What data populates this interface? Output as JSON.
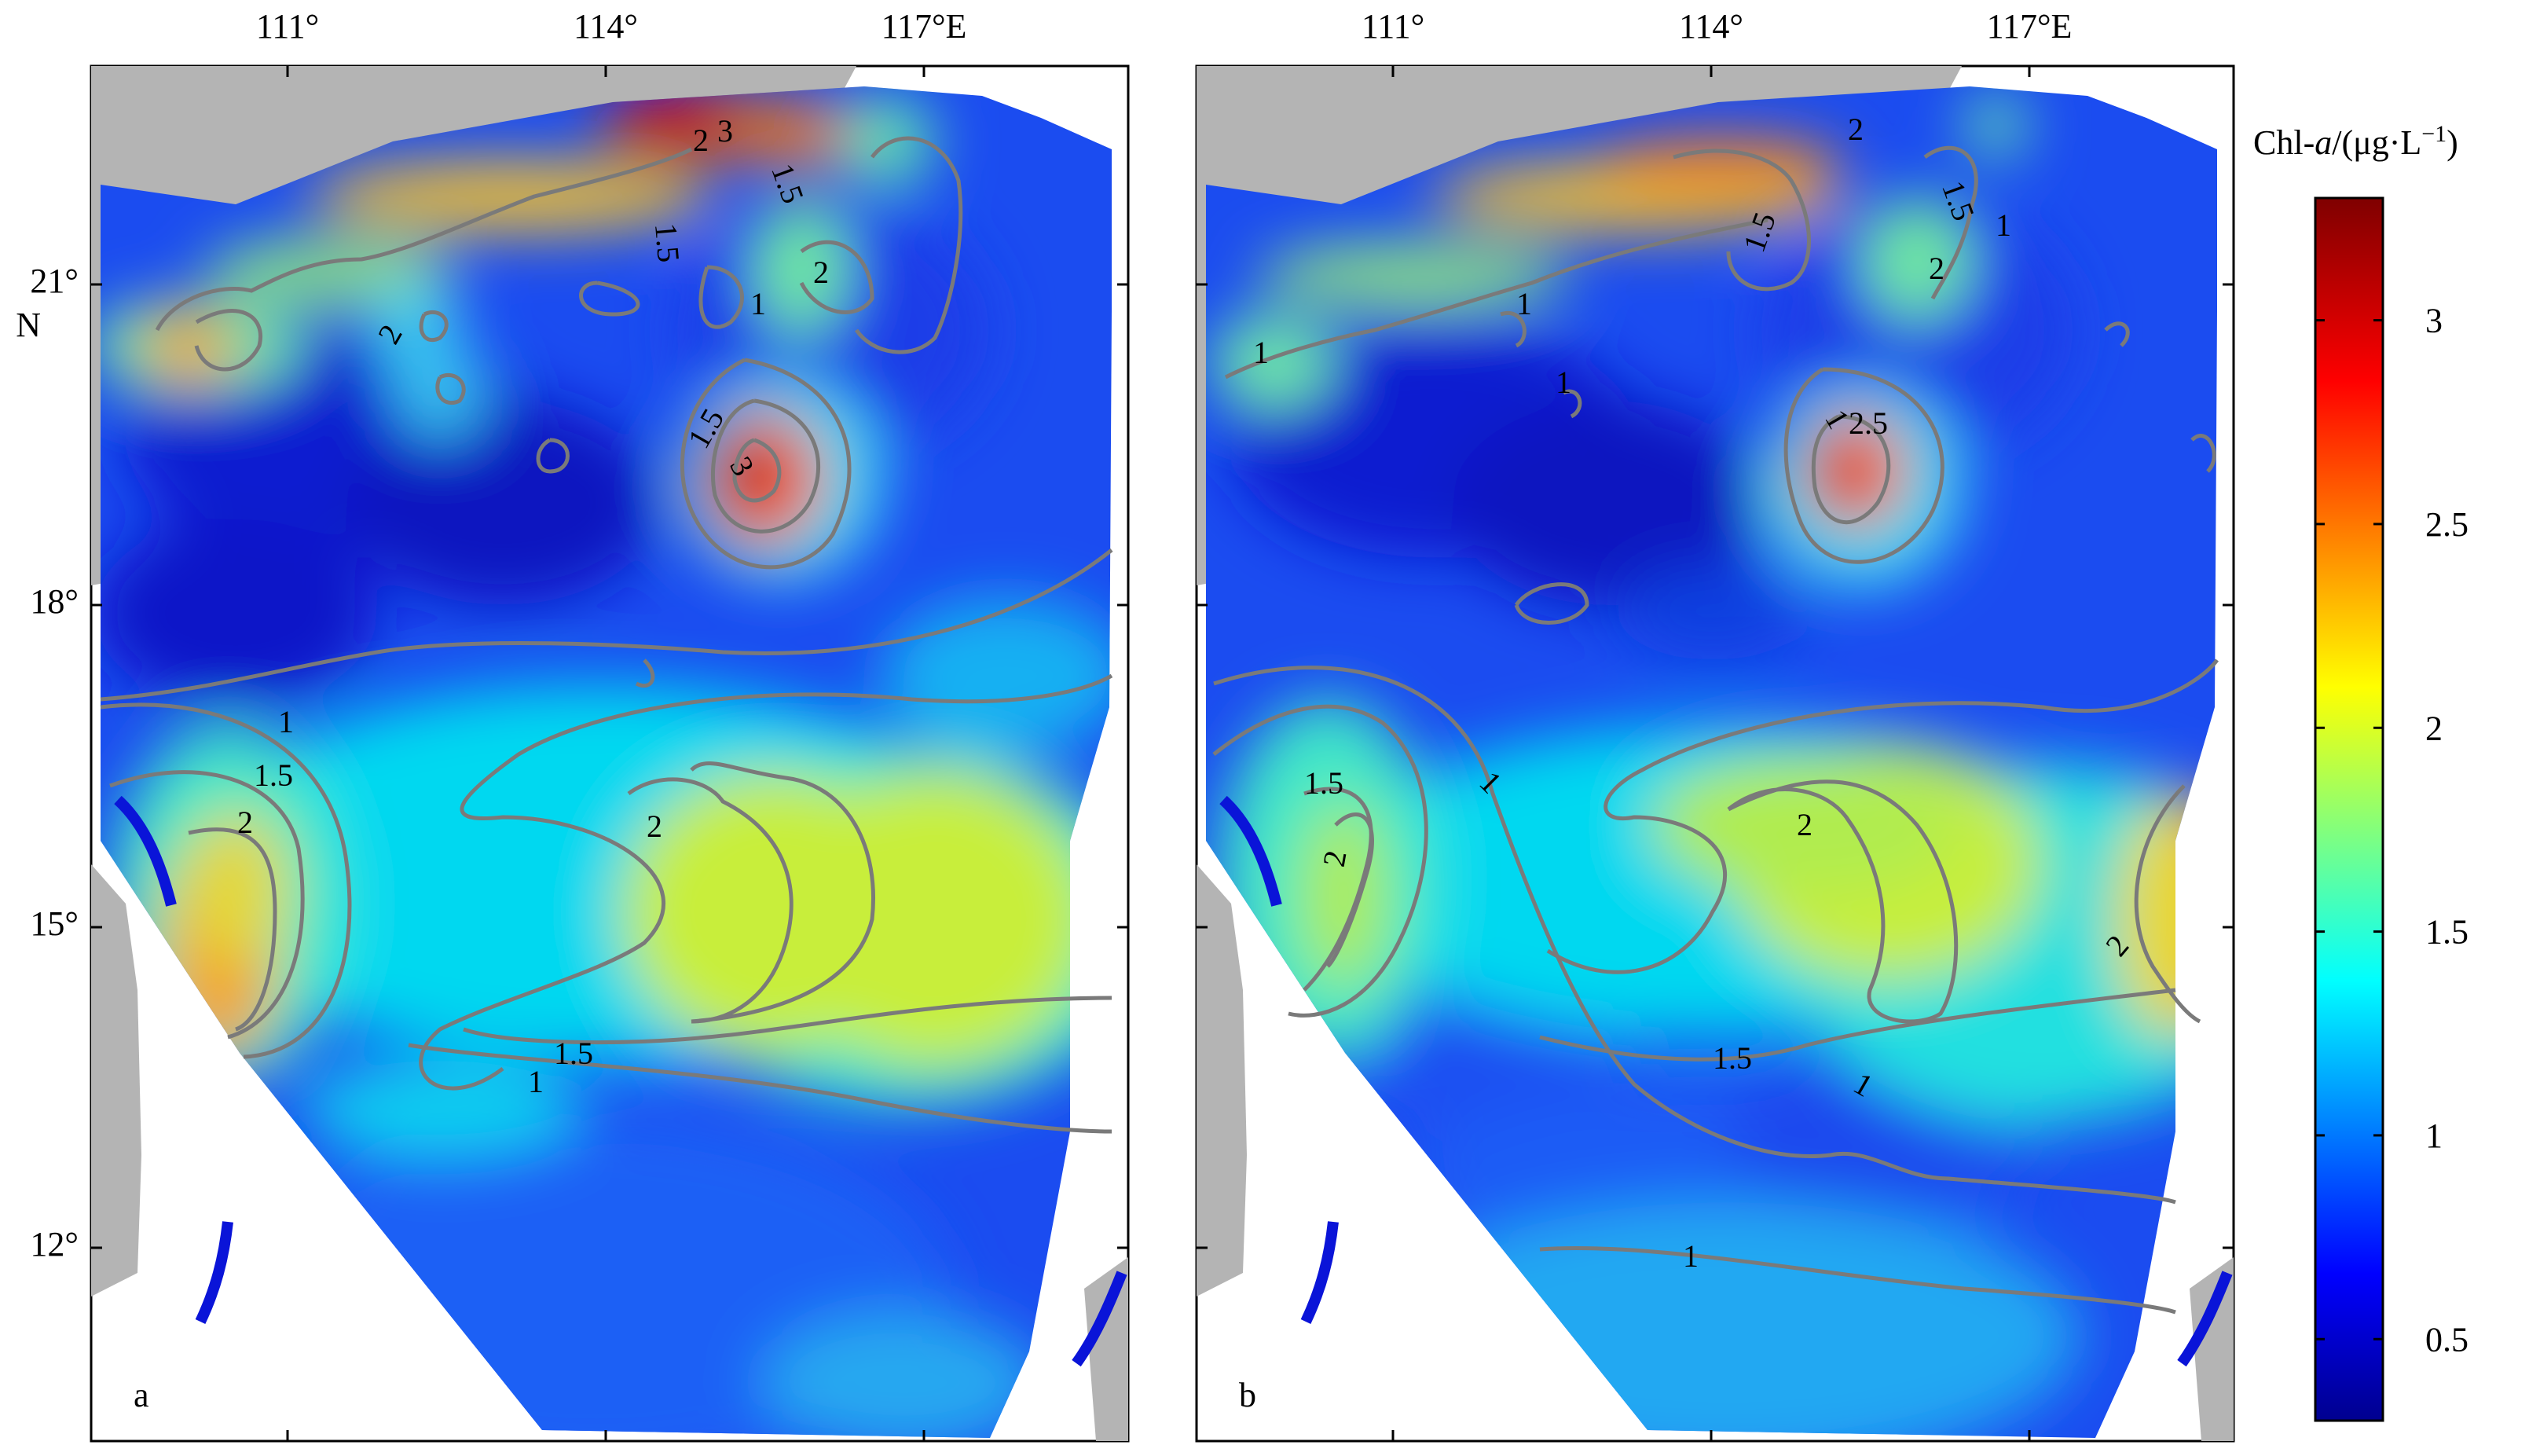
{
  "figure": {
    "panels": [
      {
        "id": "a",
        "letter": "a",
        "contour_labels": [
          "2",
          "3",
          "1.5",
          "1.5",
          "2",
          "1",
          "2",
          "1.5",
          "3",
          "1",
          "1.5",
          "2",
          "2",
          "1.5",
          "1"
        ]
      },
      {
        "id": "b",
        "letter": "b",
        "contour_labels": [
          "2",
          "1.5",
          "1.5",
          "1",
          "2",
          "1",
          "1",
          "1",
          "2.5",
          "1",
          "1.5",
          "2",
          "1",
          "2",
          "1.5",
          "1",
          "2",
          "1"
        ]
      }
    ],
    "axes": {
      "x_ticks": [
        "111°",
        "114°",
        "117°E"
      ],
      "y_ticks": [
        "21°",
        "N",
        "18°",
        "15°",
        "12°"
      ]
    },
    "colorbar": {
      "title_prefix": "Chl-",
      "title_italic": "a",
      "title_suffix": "/(μg·L",
      "title_sup": "−1",
      "title_end": ")",
      "ticks": [
        "3",
        "2.5",
        "2",
        "1.5",
        "1",
        "0.5"
      ],
      "colormap": "jet",
      "min": 0.3,
      "max": 3.3
    },
    "colors": {
      "land": "#b4b4b4",
      "contour": "#7a7a7a",
      "arc_marker": "#0a14d8",
      "background": "#ffffff"
    }
  }
}
